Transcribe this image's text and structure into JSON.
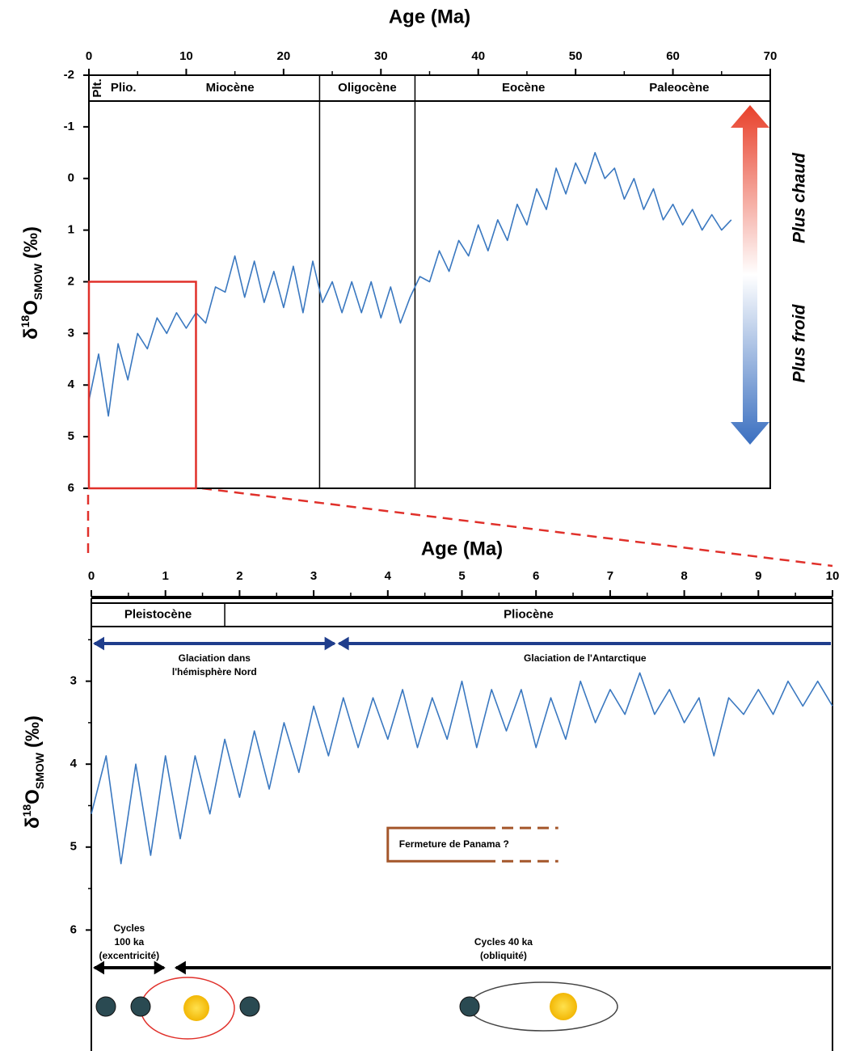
{
  "chart_data": [
    {
      "type": "line",
      "x_title": "Age (Ma)",
      "y_label": {
        "symbol": "δ",
        "sup": "18",
        "base": "O",
        "sub": "SMOW",
        "unit": "(‰)"
      },
      "xlim": [
        0,
        70
      ],
      "xticks": [
        0,
        10,
        20,
        30,
        40,
        50,
        60,
        70
      ],
      "xminor_ticks": [
        5,
        15,
        25,
        35,
        45,
        55,
        65
      ],
      "ylim": [
        -2,
        6
      ],
      "yticks": [
        -2,
        -1,
        0,
        1,
        2,
        3,
        4,
        5,
        6
      ],
      "y_inverted": true,
      "color": "#3a78c0",
      "x": [
        0,
        1,
        2,
        3,
        4,
        5,
        6,
        7,
        8,
        9,
        10,
        11,
        12,
        13,
        14,
        15,
        16,
        17,
        18,
        19,
        20,
        21,
        22,
        23,
        24,
        25,
        26,
        27,
        28,
        29,
        30,
        31,
        32,
        33,
        34,
        35,
        36,
        37,
        38,
        39,
        40,
        41,
        42,
        43,
        44,
        45,
        46,
        47,
        48,
        49,
        50,
        51,
        52,
        53,
        54,
        55,
        56,
        57,
        58,
        59,
        60,
        61,
        62,
        63,
        64,
        65,
        66
      ],
      "values": [
        4.3,
        3.4,
        4.6,
        3.2,
        3.9,
        3.0,
        3.3,
        2.7,
        3.0,
        2.6,
        2.9,
        2.6,
        2.8,
        2.1,
        2.2,
        1.5,
        2.3,
        1.6,
        2.4,
        1.8,
        2.5,
        1.7,
        2.6,
        1.6,
        2.4,
        2.0,
        2.6,
        2.0,
        2.6,
        2.0,
        2.7,
        2.1,
        2.8,
        2.3,
        1.9,
        2.0,
        1.4,
        1.8,
        1.2,
        1.5,
        0.9,
        1.4,
        0.8,
        1.2,
        0.5,
        0.9,
        0.2,
        0.6,
        -0.2,
        0.3,
        -0.3,
        0.1,
        -0.5,
        0.0,
        -0.2,
        0.4,
        0.0,
        0.6,
        0.2,
        0.8,
        0.5,
        0.9,
        0.6,
        1.0,
        0.7,
        1.0,
        0.8
      ],
      "epochs": [
        {
          "label": "Plt.",
          "start": 0,
          "end": 1.8
        },
        {
          "label": "Plio.",
          "start": 1.8,
          "end": 5.3
        },
        {
          "label": "Miocène",
          "start": 5.3,
          "end": 23.7
        },
        {
          "label": "Oligocène",
          "start": 23.7,
          "end": 33.5
        },
        {
          "label": "Eocène",
          "start": 33.5,
          "end": 55.8
        },
        {
          "label": "Paleocène",
          "start": 55.8,
          "end": 65.5
        }
      ],
      "boundaries": [
        23.7,
        33.5
      ],
      "boundary_span": "full",
      "temperature_arrow": {
        "warm": "Plus chaud",
        "cold": "Plus froid"
      },
      "zoom_box": {
        "x": [
          0,
          11
        ],
        "y": [
          2,
          6
        ],
        "color": "#e0302a"
      }
    },
    {
      "type": "line",
      "x_title": "Age (Ma)",
      "y_label": {
        "symbol": "δ",
        "sup": "18",
        "base": "O",
        "sub": "SMOW",
        "unit": "(‰)"
      },
      "xlim": [
        0,
        10
      ],
      "xticks": [
        0,
        1,
        2,
        3,
        4,
        5,
        6,
        7,
        8,
        9,
        10
      ],
      "xminor_ticks": [
        0.5,
        1.5,
        2.5,
        3.5,
        4.5,
        5.5,
        6.5,
        7.5,
        8.5,
        9.5
      ],
      "ylim": [
        2,
        7.4
      ],
      "yticks": [
        3,
        4,
        5,
        6
      ],
      "yminor_ticks": [
        2.5,
        3.5,
        4.5,
        5.5
      ],
      "y_inverted": true,
      "color": "#3a78c0",
      "x": [
        0,
        0.2,
        0.4,
        0.6,
        0.8,
        1.0,
        1.2,
        1.4,
        1.6,
        1.8,
        2.0,
        2.2,
        2.4,
        2.6,
        2.8,
        3.0,
        3.2,
        3.4,
        3.6,
        3.8,
        4.0,
        4.2,
        4.4,
        4.6,
        4.8,
        5.0,
        5.2,
        5.4,
        5.6,
        5.8,
        6.0,
        6.2,
        6.4,
        6.6,
        6.8,
        7.0,
        7.2,
        7.4,
        7.6,
        7.8,
        8.0,
        8.2,
        8.4,
        8.6,
        8.8,
        9.0,
        9.2,
        9.4,
        9.6,
        9.8,
        10.0
      ],
      "values": [
        4.6,
        3.9,
        5.2,
        4.0,
        5.1,
        3.9,
        4.9,
        3.9,
        4.6,
        3.7,
        4.4,
        3.6,
        4.3,
        3.5,
        4.1,
        3.3,
        3.9,
        3.2,
        3.8,
        3.2,
        3.7,
        3.1,
        3.8,
        3.2,
        3.7,
        3.0,
        3.8,
        3.1,
        3.6,
        3.1,
        3.8,
        3.2,
        3.7,
        3.0,
        3.5,
        3.1,
        3.4,
        2.9,
        3.4,
        3.1,
        3.5,
        3.2,
        3.9,
        3.2,
        3.4,
        3.1,
        3.4,
        3.0,
        3.3,
        3.0,
        3.3
      ],
      "epochs": [
        {
          "label": "Pleistocène",
          "start": 0,
          "end": 1.8
        },
        {
          "label": "Pliocène",
          "start": 1.8,
          "end": 10
        }
      ],
      "boundaries": [
        1.8
      ],
      "boundary_span": "band",
      "glaciations": [
        {
          "lines": [
            "Glaciation dans",
            "l'hémisphère Nord"
          ],
          "start": 0,
          "end": 3.3,
          "heads": "both"
        },
        {
          "lines": [
            "Glaciation de l'Antarctique"
          ],
          "start": 3.3,
          "end": 10,
          "heads": "start"
        }
      ],
      "panama": {
        "label": "Fermeture de Panama ?",
        "start": 4.0,
        "end": 6.3,
        "dashed_from": 5.3,
        "y_range": [
          4.77,
          5.17
        ],
        "color": "#a4562a"
      },
      "cycles": [
        {
          "lines": [
            "Cycles",
            "100 ka",
            "(excentricité)"
          ],
          "start": 0,
          "end": 1.0,
          "heads": "both"
        },
        {
          "lines": [
            "Cycles 40 ka",
            "(obliquité)"
          ],
          "start": 1.1,
          "end": 10,
          "heads": "start"
        }
      ]
    }
  ]
}
